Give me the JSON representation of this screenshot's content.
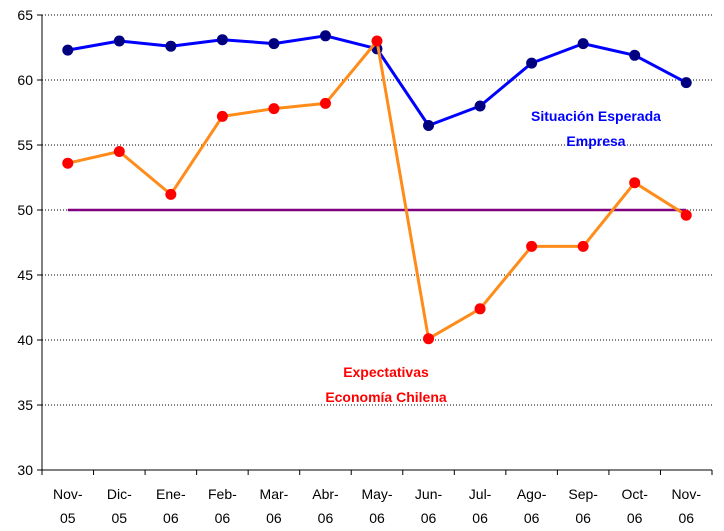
{
  "chart_data": {
    "type": "line",
    "categories": [
      "Nov-05",
      "Dic-05",
      "Ene-06",
      "Feb-06",
      "Mar-06",
      "Abr-06",
      "May-06",
      "Jun-06",
      "Jul-06",
      "Ago-06",
      "Sep-06",
      "Oct-06",
      "Nov-06"
    ],
    "category_lines": [
      [
        "Nov-",
        "05"
      ],
      [
        "Dic-",
        "05"
      ],
      [
        "Ene-",
        "06"
      ],
      [
        "Feb-",
        "06"
      ],
      [
        "Mar-",
        "06"
      ],
      [
        "Abr-",
        "06"
      ],
      [
        "May-",
        "06"
      ],
      [
        "Jun-",
        "06"
      ],
      [
        "Jul-",
        "06"
      ],
      [
        "Ago-",
        "06"
      ],
      [
        "Sep-",
        "06"
      ],
      [
        "Oct-",
        "06"
      ],
      [
        "Nov-",
        "06"
      ]
    ],
    "ylim": [
      30,
      65
    ],
    "yticks": [
      30,
      35,
      40,
      45,
      50,
      55,
      60,
      65
    ],
    "grid": "horizontal",
    "series": [
      {
        "name_lines": [
          "Situación Esperada",
          "Empresa"
        ],
        "line_color": "#0000ff",
        "marker_color": "#000080",
        "values": [
          62.3,
          63.0,
          62.6,
          63.1,
          62.8,
          63.4,
          62.4,
          56.5,
          58.0,
          61.3,
          62.8,
          61.9,
          59.8
        ]
      },
      {
        "name_lines": [
          "Expectativas",
          "Economía Chilena"
        ],
        "line_color": "#ff8c1a",
        "marker_color": "#ff0000",
        "values": [
          53.6,
          54.5,
          51.2,
          57.2,
          57.8,
          58.2,
          63.0,
          40.1,
          42.4,
          47.2,
          47.2,
          52.1,
          49.6
        ]
      }
    ],
    "reference_line": {
      "value": 50,
      "color": "#800080"
    }
  }
}
